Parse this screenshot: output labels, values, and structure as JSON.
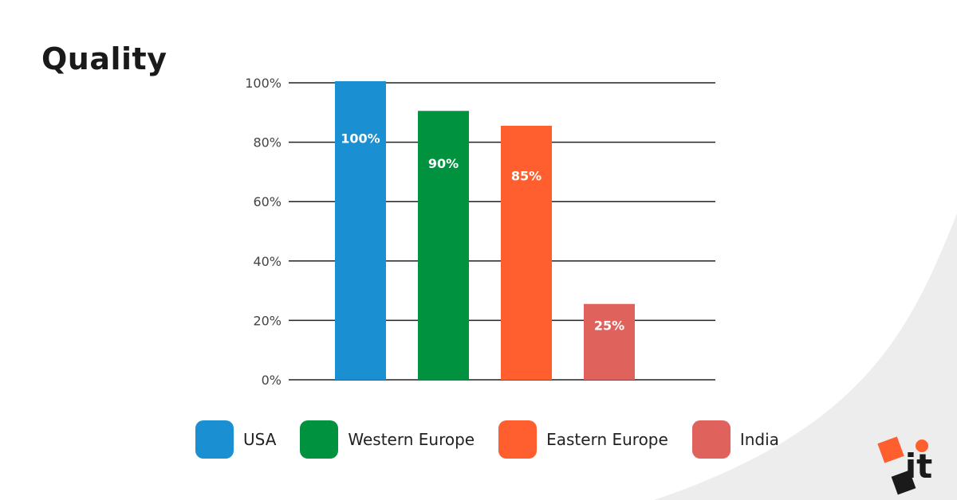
{
  "chart_data": {
    "type": "bar",
    "title": "Quality",
    "categories": [
      "USA",
      "Western Europe",
      "Eastern Europe",
      "India"
    ],
    "values": [
      100,
      90,
      85,
      25
    ],
    "data_labels": [
      "100%",
      "90%",
      "85%",
      "25%"
    ],
    "colors": [
      "#1a8fd1",
      "#00923f",
      "#ff5f2e",
      "#e0625c"
    ],
    "ylim": [
      0,
      100
    ],
    "yticks": [
      0,
      20,
      40,
      60,
      80,
      100
    ],
    "ytick_labels": [
      "0%",
      "20%",
      "40%",
      "60%",
      "80%",
      "100%"
    ],
    "grid": true,
    "legend_position": "bottom",
    "xlabel": "",
    "ylabel": ""
  },
  "logo": {
    "text": "it",
    "colors": [
      "#ff5f2e",
      "#1a1a1a"
    ]
  }
}
